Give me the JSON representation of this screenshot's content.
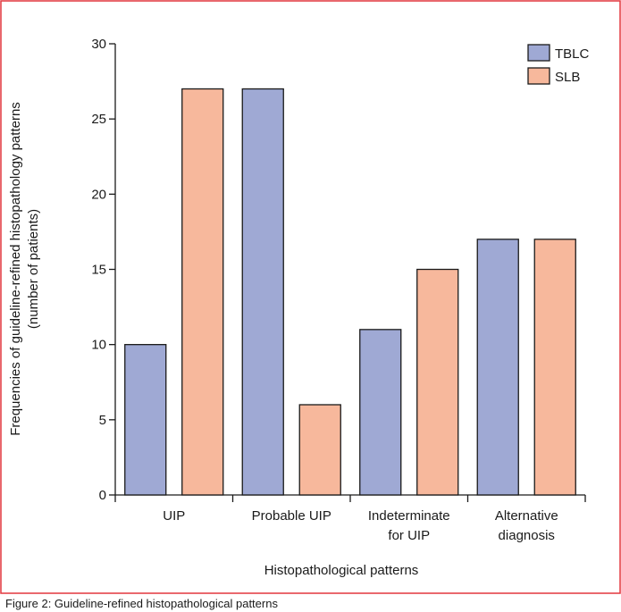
{
  "colors": {
    "frame": "#e2373d",
    "tblc": "#9fa9d4",
    "slb": "#f7b89c",
    "axis": "#1a1a1a"
  },
  "caption": "Figure 2: Guideline-refined histopathological patterns",
  "chart_data": {
    "type": "bar",
    "title": "",
    "xlabel": "Histopathological patterns",
    "ylabel_lines": [
      "Frequencies of guideline-refined histopathology patterns",
      "(number of patients)"
    ],
    "categories": [
      [
        "UIP"
      ],
      [
        "Probable UIP"
      ],
      [
        "Indeterminate",
        "for UIP"
      ],
      [
        "Alternative",
        "diagnosis"
      ]
    ],
    "series": [
      {
        "name": "TBLC",
        "values": [
          10,
          27,
          11,
          17
        ]
      },
      {
        "name": "SLB",
        "values": [
          27,
          6,
          15,
          17
        ]
      }
    ],
    "ylim": [
      0,
      30
    ],
    "yticks": [
      0,
      5,
      10,
      15,
      20,
      25,
      30
    ],
    "grid": false,
    "legend": "top-right"
  }
}
